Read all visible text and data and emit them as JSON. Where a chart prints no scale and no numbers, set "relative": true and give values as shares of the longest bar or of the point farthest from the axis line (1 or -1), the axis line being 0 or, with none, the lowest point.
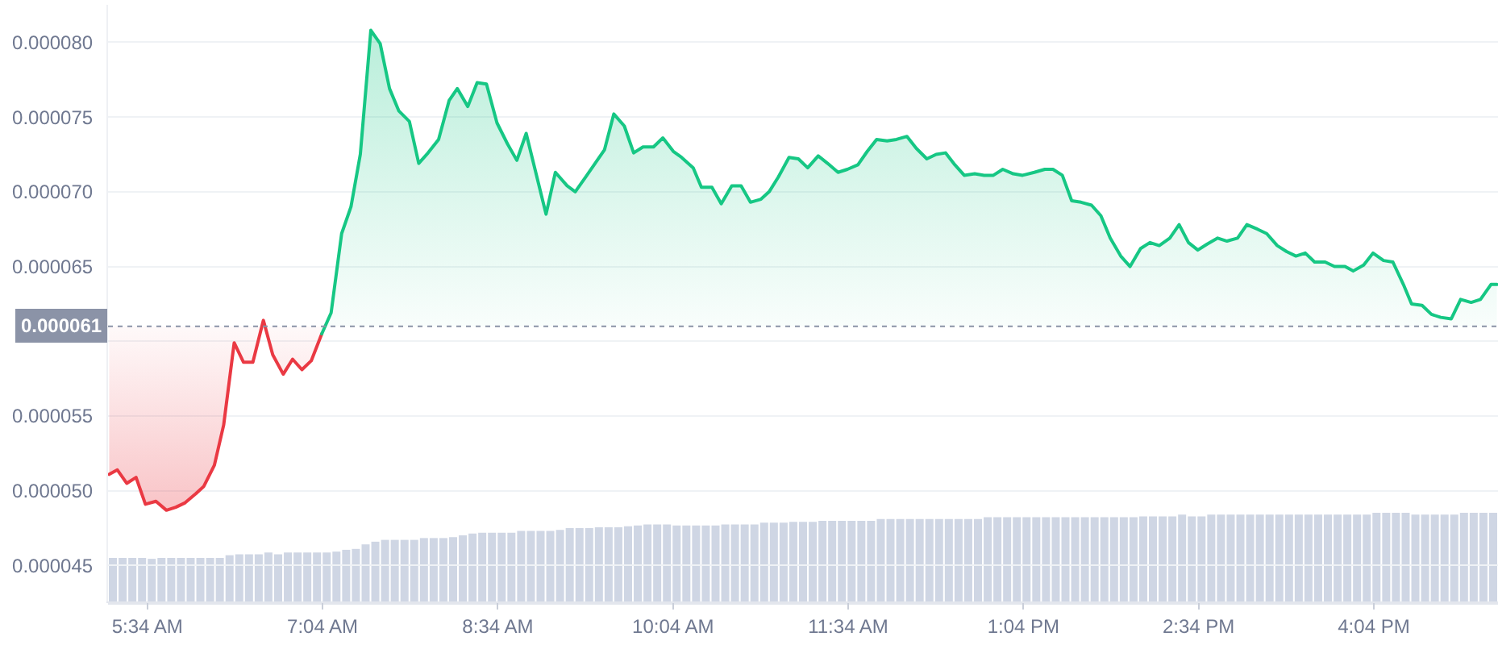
{
  "chart_data": [
    {
      "type": "line",
      "xlim": [
        5.23,
        17.13
      ],
      "ylim": [
        4.26e-05,
        8.25e-05
      ],
      "xticks": [
        {
          "value": 5.5667,
          "label": "5:34 AM"
        },
        {
          "value": 7.0667,
          "label": "7:04 AM"
        },
        {
          "value": 8.5667,
          "label": "8:34 AM"
        },
        {
          "value": 10.0667,
          "label": "10:04 AM"
        },
        {
          "value": 11.5667,
          "label": "11:34 AM"
        },
        {
          "value": 13.0667,
          "label": "1:04 PM"
        },
        {
          "value": 14.5667,
          "label": "2:34 PM"
        },
        {
          "value": 16.0667,
          "label": "4:04 PM"
        }
      ],
      "yticks": [
        {
          "value": 4.5e-05,
          "label": "0.000045"
        },
        {
          "value": 5e-05,
          "label": "0.000050"
        },
        {
          "value": 5.5e-05,
          "label": "0.000055"
        },
        {
          "value": 6e-05,
          "label": null
        },
        {
          "value": 6.5e-05,
          "label": "0.000065"
        },
        {
          "value": 7e-05,
          "label": "0.000070"
        },
        {
          "value": 7.5e-05,
          "label": "0.000075"
        },
        {
          "value": 8e-05,
          "label": "0.000080"
        }
      ],
      "grid": "y",
      "ref_lines": [
        {
          "axis": "y",
          "value": 6.1e-05,
          "label": "0.000061",
          "color": "#8b93a7",
          "line_style": "dotted"
        }
      ],
      "series": [
        {
          "color": "#ea3943",
          "x": [
            5.24,
            5.31,
            5.39,
            5.47,
            5.55,
            5.64,
            5.73,
            5.81,
            5.89,
            5.98,
            6.05,
            6.14,
            6.22,
            6.31,
            6.39,
            6.47,
            6.56,
            6.64,
            6.73,
            6.81,
            6.89,
            6.97,
            7.06
          ],
          "values": [
            5.11e-05,
            5.14e-05,
            5.05e-05,
            5.09e-05,
            4.91e-05,
            4.93e-05,
            4.87e-05,
            4.89e-05,
            4.92e-05,
            4.98e-05,
            5.03e-05,
            5.17e-05,
            5.44e-05,
            5.99e-05,
            5.86e-05,
            5.86e-05,
            6.14e-05,
            5.91e-05,
            5.78e-05,
            5.88e-05,
            5.81e-05,
            5.87e-05,
            6.05e-05
          ],
          "lower": [
            5.11e-05,
            5.14e-05,
            5.05e-05,
            5.09e-05,
            4.91e-05,
            4.93e-05,
            4.87e-05,
            4.89e-05,
            4.92e-05,
            4.98e-05,
            5.03e-05,
            5.17e-05,
            5.44e-05,
            5.99e-05,
            5.86e-05,
            5.86e-05,
            6.14e-05,
            5.91e-05,
            5.78e-05,
            5.88e-05,
            5.81e-05,
            5.87e-05,
            6.05e-05
          ],
          "upper": [
            6.1e-05,
            6.1e-05,
            6.1e-05,
            6.1e-05,
            6.1e-05,
            6.1e-05,
            6.1e-05,
            6.1e-05,
            6.1e-05,
            6.1e-05,
            6.1e-05,
            6.1e-05,
            6.1e-05,
            6.1e-05,
            6.1e-05,
            6.1e-05,
            6.1e-05,
            6.1e-05,
            6.1e-05,
            6.1e-05,
            6.1e-05,
            6.1e-05,
            6.1e-05
          ]
        },
        {
          "color": "#16c784",
          "x": [
            7.06,
            7.14,
            7.23,
            7.31,
            7.39,
            7.48,
            7.56,
            7.64,
            7.72,
            7.81,
            7.89,
            7.97,
            8.06,
            8.15,
            8.22,
            8.31,
            8.39,
            8.47,
            8.56,
            8.65,
            8.73,
            8.81,
            8.98,
            9.06,
            9.16,
            9.23,
            9.32,
            9.4,
            9.48,
            9.56,
            9.65,
            9.73,
            9.81,
            9.9,
            9.98,
            10.07,
            10.14,
            10.24,
            10.31,
            10.4,
            10.48,
            10.57,
            10.65,
            10.73,
            10.82,
            10.89,
            10.97,
            11.06,
            11.14,
            11.22,
            11.31,
            11.39,
            11.48,
            11.56,
            11.65,
            11.73,
            11.81,
            11.9,
            11.98,
            12.07,
            12.15,
            12.24,
            12.32,
            12.4,
            12.48,
            12.56,
            12.65,
            12.73,
            12.81,
            12.89,
            12.98,
            13.06,
            13.16,
            13.25,
            13.32,
            13.4,
            13.48,
            13.56,
            13.65,
            13.73,
            13.81,
            13.9,
            13.98,
            14.07,
            14.15,
            14.23,
            14.32,
            14.4,
            14.48,
            14.56,
            14.64,
            14.73,
            14.81,
            14.9,
            14.98,
            15.07,
            15.15,
            15.24,
            15.32,
            15.4,
            15.48,
            15.56,
            15.65,
            15.73,
            15.82,
            15.89,
            15.98,
            16.06,
            16.15,
            16.23,
            16.32,
            16.39,
            16.48,
            16.56,
            16.64,
            16.73,
            16.81,
            16.9,
            16.98,
            17.07,
            17.12
          ],
          "values": [
            6.05e-05,
            6.19e-05,
            6.72e-05,
            6.9e-05,
            7.25e-05,
            8.08e-05,
            7.99e-05,
            7.69e-05,
            7.54e-05,
            7.47e-05,
            7.19e-05,
            7.26e-05,
            7.35e-05,
            7.61e-05,
            7.69e-05,
            7.57e-05,
            7.73e-05,
            7.72e-05,
            7.46e-05,
            7.32e-05,
            7.21e-05,
            7.39e-05,
            6.85e-05,
            7.13e-05,
            7.04e-05,
            7e-05,
            7.1e-05,
            7.19e-05,
            7.28e-05,
            7.52e-05,
            7.44e-05,
            7.26e-05,
            7.3e-05,
            7.3e-05,
            7.36e-05,
            7.27e-05,
            7.23e-05,
            7.16e-05,
            7.03e-05,
            7.03e-05,
            6.92e-05,
            7.04e-05,
            7.04e-05,
            6.93e-05,
            6.95e-05,
            7e-05,
            7.1e-05,
            7.23e-05,
            7.22e-05,
            7.16e-05,
            7.24e-05,
            7.19e-05,
            7.13e-05,
            7.15e-05,
            7.18e-05,
            7.27e-05,
            7.35e-05,
            7.34e-05,
            7.35e-05,
            7.37e-05,
            7.29e-05,
            7.22e-05,
            7.25e-05,
            7.26e-05,
            7.18e-05,
            7.11e-05,
            7.12e-05,
            7.11e-05,
            7.11e-05,
            7.15e-05,
            7.12e-05,
            7.11e-05,
            7.13e-05,
            7.15e-05,
            7.15e-05,
            7.11e-05,
            6.94e-05,
            6.93e-05,
            6.91e-05,
            6.84e-05,
            6.69e-05,
            6.57e-05,
            6.5e-05,
            6.62e-05,
            6.66e-05,
            6.64e-05,
            6.69e-05,
            6.78e-05,
            6.66e-05,
            6.61e-05,
            6.65e-05,
            6.69e-05,
            6.67e-05,
            6.69e-05,
            6.78e-05,
            6.75e-05,
            6.72e-05,
            6.64e-05,
            6.6e-05,
            6.57e-05,
            6.59e-05,
            6.53e-05,
            6.53e-05,
            6.5e-05,
            6.5e-05,
            6.47e-05,
            6.51e-05,
            6.59e-05,
            6.54e-05,
            6.53e-05,
            6.38e-05,
            6.25e-05,
            6.24e-05,
            6.18e-05,
            6.16e-05,
            6.15e-05,
            6.28e-05,
            6.26e-05,
            6.28e-05,
            6.38e-05,
            6.38e-05
          ],
          "lower": [
            6.1e-05,
            6.1e-05,
            6.1e-05,
            6.1e-05,
            6.1e-05,
            6.1e-05,
            6.1e-05,
            6.1e-05,
            6.1e-05,
            6.1e-05,
            6.1e-05,
            6.1e-05,
            6.1e-05,
            6.1e-05,
            6.1e-05,
            6.1e-05,
            6.1e-05,
            6.1e-05,
            6.1e-05,
            6.1e-05,
            6.1e-05,
            6.1e-05,
            6.1e-05,
            6.1e-05,
            6.1e-05,
            6.1e-05,
            6.1e-05,
            6.1e-05,
            6.1e-05,
            6.1e-05,
            6.1e-05,
            6.1e-05,
            6.1e-05,
            6.1e-05,
            6.1e-05,
            6.1e-05,
            6.1e-05,
            6.1e-05,
            6.1e-05,
            6.1e-05,
            6.1e-05,
            6.1e-05,
            6.1e-05,
            6.1e-05,
            6.1e-05,
            6.1e-05,
            6.1e-05,
            6.1e-05,
            6.1e-05,
            6.1e-05,
            6.1e-05,
            6.1e-05,
            6.1e-05,
            6.1e-05,
            6.1e-05,
            6.1e-05,
            6.1e-05,
            6.1e-05,
            6.1e-05,
            6.1e-05,
            6.1e-05,
            6.1e-05,
            6.1e-05,
            6.1e-05,
            6.1e-05,
            6.1e-05,
            6.1e-05,
            6.1e-05,
            6.1e-05,
            6.1e-05,
            6.1e-05,
            6.1e-05,
            6.1e-05,
            6.1e-05,
            6.1e-05,
            6.1e-05,
            6.1e-05,
            6.1e-05,
            6.1e-05,
            6.1e-05,
            6.1e-05,
            6.1e-05,
            6.1e-05,
            6.1e-05,
            6.1e-05,
            6.1e-05,
            6.1e-05,
            6.1e-05,
            6.1e-05,
            6.1e-05,
            6.1e-05,
            6.1e-05,
            6.1e-05,
            6.1e-05,
            6.1e-05,
            6.1e-05,
            6.1e-05,
            6.1e-05,
            6.1e-05,
            6.1e-05,
            6.1e-05,
            6.1e-05,
            6.1e-05,
            6.1e-05,
            6.1e-05,
            6.1e-05,
            6.1e-05,
            6.1e-05,
            6.1e-05,
            6.1e-05,
            6.1e-05,
            6.1e-05,
            6.1e-05,
            6.1e-05,
            6.1e-05,
            6.1e-05,
            6.1e-05,
            6.1e-05,
            6.1e-05,
            6.1e-05,
            6.1e-05
          ],
          "upper": [
            6.05e-05,
            6.19e-05,
            6.72e-05,
            6.9e-05,
            7.25e-05,
            8.08e-05,
            7.99e-05,
            7.69e-05,
            7.54e-05,
            7.47e-05,
            7.19e-05,
            7.26e-05,
            7.35e-05,
            7.61e-05,
            7.69e-05,
            7.57e-05,
            7.73e-05,
            7.72e-05,
            7.46e-05,
            7.32e-05,
            7.21e-05,
            7.39e-05,
            6.85e-05,
            7.13e-05,
            7.04e-05,
            7e-05,
            7.1e-05,
            7.19e-05,
            7.28e-05,
            7.52e-05,
            7.44e-05,
            7.26e-05,
            7.3e-05,
            7.3e-05,
            7.36e-05,
            7.27e-05,
            7.23e-05,
            7.16e-05,
            7.03e-05,
            7.03e-05,
            6.92e-05,
            7.04e-05,
            7.04e-05,
            6.93e-05,
            6.95e-05,
            7e-05,
            7.1e-05,
            7.23e-05,
            7.22e-05,
            7.16e-05,
            7.24e-05,
            7.19e-05,
            7.13e-05,
            7.15e-05,
            7.18e-05,
            7.27e-05,
            7.35e-05,
            7.34e-05,
            7.35e-05,
            7.37e-05,
            7.29e-05,
            7.22e-05,
            7.25e-05,
            7.26e-05,
            7.18e-05,
            7.11e-05,
            7.12e-05,
            7.11e-05,
            7.11e-05,
            7.15e-05,
            7.12e-05,
            7.11e-05,
            7.13e-05,
            7.15e-05,
            7.15e-05,
            7.11e-05,
            6.94e-05,
            6.93e-05,
            6.91e-05,
            6.84e-05,
            6.69e-05,
            6.57e-05,
            6.5e-05,
            6.62e-05,
            6.66e-05,
            6.64e-05,
            6.69e-05,
            6.78e-05,
            6.66e-05,
            6.61e-05,
            6.65e-05,
            6.69e-05,
            6.67e-05,
            6.69e-05,
            6.78e-05,
            6.75e-05,
            6.72e-05,
            6.64e-05,
            6.6e-05,
            6.57e-05,
            6.59e-05,
            6.53e-05,
            6.53e-05,
            6.5e-05,
            6.5e-05,
            6.47e-05,
            6.51e-05,
            6.59e-05,
            6.54e-05,
            6.53e-05,
            6.38e-05,
            6.25e-05,
            6.24e-05,
            6.18e-05,
            6.16e-05,
            6.15e-05,
            6.28e-05,
            6.26e-05,
            6.28e-05,
            6.38e-05,
            6.38e-05
          ]
        }
      ]
    },
    {
      "type": "bar",
      "relative": true,
      "color": "#cfd6e4",
      "categories": [
        null,
        null,
        null,
        null,
        null,
        null,
        null,
        null,
        null,
        null,
        null,
        null,
        null,
        null,
        null,
        null,
        null,
        null,
        null,
        null,
        null,
        null,
        null,
        null,
        null,
        null,
        null,
        null,
        null,
        null,
        null,
        null,
        null,
        null,
        null,
        null,
        null,
        null,
        null,
        null,
        null,
        null,
        null,
        null,
        null,
        null,
        null,
        null,
        null,
        null,
        null,
        null,
        null,
        null,
        null,
        null,
        null,
        null,
        null,
        null,
        null,
        null,
        null,
        null,
        null,
        null,
        null,
        null,
        null,
        null,
        null,
        null,
        null,
        null,
        null,
        null,
        null,
        null,
        null,
        null,
        null,
        null,
        null,
        null,
        null,
        null,
        null,
        null,
        null,
        null,
        null,
        null,
        null,
        null,
        null,
        null,
        null,
        null,
        null,
        null,
        null,
        null,
        null,
        null,
        null,
        null,
        null,
        null,
        null,
        null,
        null,
        null,
        null,
        null,
        null,
        null,
        null,
        null,
        null,
        null,
        null,
        null,
        null,
        null,
        null,
        null,
        null,
        null,
        null,
        null,
        null,
        null,
        null,
        null,
        null,
        null,
        null,
        null,
        null,
        null,
        null,
        null,
        null
      ],
      "values": [
        0.5,
        0.5,
        0.5,
        0.5,
        0.49,
        0.5,
        0.5,
        0.5,
        0.5,
        0.5,
        0.5,
        0.5,
        0.53,
        0.54,
        0.54,
        0.54,
        0.56,
        0.54,
        0.56,
        0.56,
        0.56,
        0.56,
        0.56,
        0.57,
        0.59,
        0.6,
        0.65,
        0.68,
        0.7,
        0.7,
        0.7,
        0.7,
        0.72,
        0.72,
        0.72,
        0.73,
        0.75,
        0.77,
        0.78,
        0.78,
        0.78,
        0.78,
        0.8,
        0.8,
        0.8,
        0.8,
        0.81,
        0.83,
        0.83,
        0.83,
        0.84,
        0.84,
        0.84,
        0.85,
        0.86,
        0.87,
        0.87,
        0.87,
        0.86,
        0.86,
        0.86,
        0.86,
        0.86,
        0.87,
        0.87,
        0.87,
        0.87,
        0.89,
        0.89,
        0.89,
        0.9,
        0.9,
        0.9,
        0.91,
        0.91,
        0.91,
        0.91,
        0.91,
        0.91,
        0.93,
        0.93,
        0.93,
        0.93,
        0.93,
        0.93,
        0.93,
        0.93,
        0.93,
        0.93,
        0.93,
        0.95,
        0.95,
        0.95,
        0.95,
        0.95,
        0.95,
        0.95,
        0.95,
        0.95,
        0.95,
        0.95,
        0.95,
        0.95,
        0.95,
        0.95,
        0.95,
        0.96,
        0.96,
        0.96,
        0.96,
        0.98,
        0.96,
        0.96,
        0.98,
        0.98,
        0.98,
        0.98,
        0.98,
        0.98,
        0.98,
        0.98,
        0.98,
        0.98,
        0.98,
        0.98,
        0.98,
        0.98,
        0.98,
        0.98,
        0.98,
        1,
        1,
        1,
        1,
        0.98,
        0.98,
        0.98,
        0.98,
        0.98,
        1,
        1,
        1,
        1
      ]
    }
  ]
}
